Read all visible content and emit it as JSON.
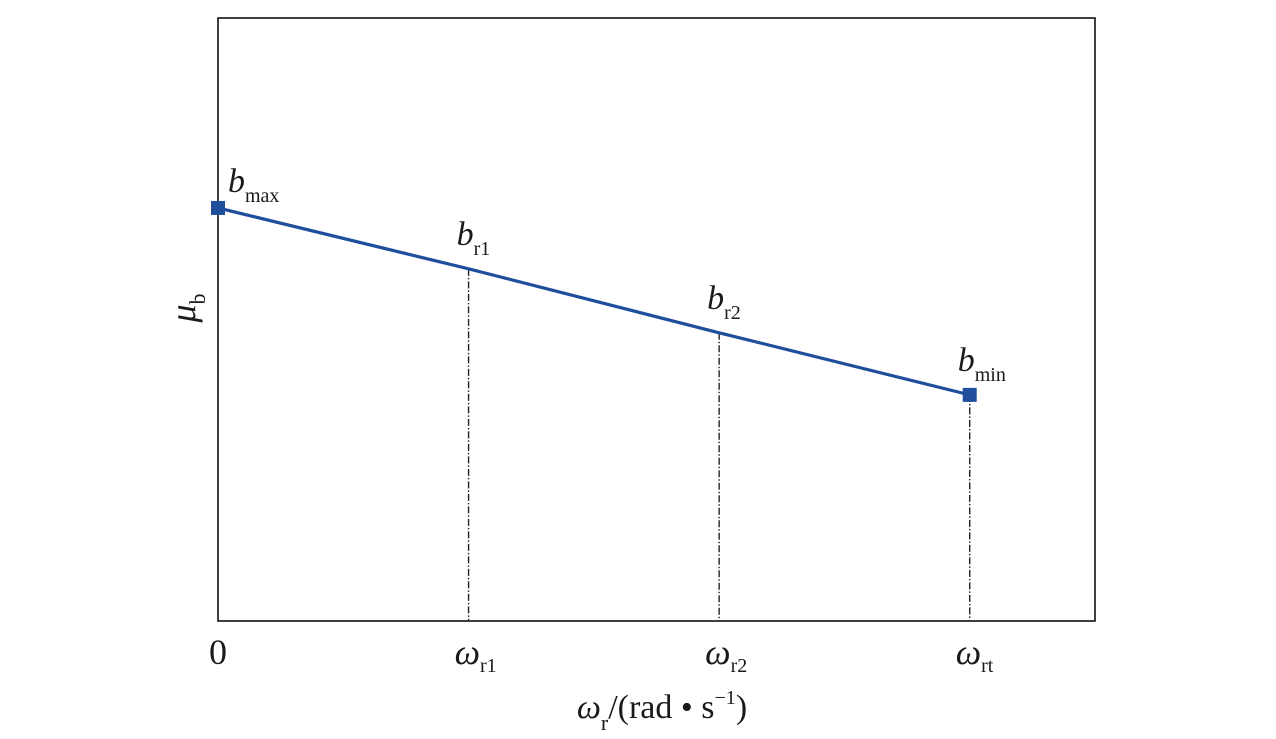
{
  "chart_data": {
    "type": "line",
    "xlabel": {
      "main": "ω",
      "sub": "r",
      "rest": "/(rad • s",
      "sup": "−1",
      "close": ")"
    },
    "ylabel": {
      "main": "μ",
      "sub": "b"
    },
    "x_ticks": [
      {
        "x": 0,
        "main": "0",
        "sub": ""
      },
      {
        "x": 1,
        "main": "ω",
        "sub": "r1"
      },
      {
        "x": 2,
        "main": "ω",
        "sub": "r2"
      },
      {
        "x": 3,
        "main": "ω",
        "sub": "rt"
      }
    ],
    "xlim": [
      0,
      3.5
    ],
    "ylim": [
      0,
      1
    ],
    "series": [
      {
        "color": "#1f4e9c",
        "points": [
          {
            "x": 0,
            "y": 0.685,
            "main": "b",
            "sub": "max",
            "marker": true
          },
          {
            "x": 1,
            "y": 0.584,
            "main": "b",
            "sub": "r1",
            "marker": false
          },
          {
            "x": 2,
            "y": 0.478,
            "main": "b",
            "sub": "r2",
            "marker": false
          },
          {
            "x": 3,
            "y": 0.375,
            "main": "b",
            "sub": "min",
            "marker": true
          }
        ]
      }
    ],
    "dropline_x": [
      1,
      2,
      3
    ],
    "grid": false,
    "legend": "none"
  }
}
